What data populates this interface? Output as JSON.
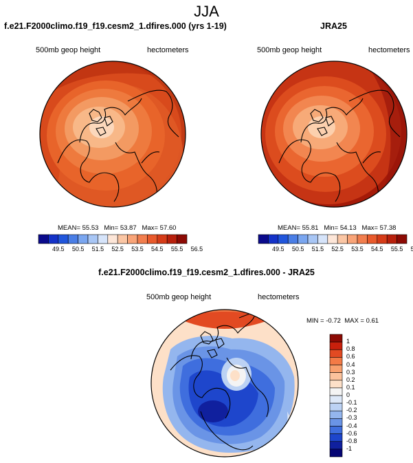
{
  "figure": {
    "season_title": "JJA",
    "left_panel": {
      "case_title": "f.e21.F2000climo.f19_f19.cesm2_1.dfires.000 (yrs 1-19)",
      "variable_label": "500mb geop height",
      "units_label": "hectometers",
      "stats": {
        "mean": "MEAN=  55.53",
        "min": "Min=  53.87",
        "max": "Max=  57.60"
      }
    },
    "right_panel": {
      "case_title": "JRA25",
      "variable_label": "500mb geop height",
      "units_label": "hectometers",
      "stats": {
        "mean": "MEAN=  55.81",
        "min": "Min=  54.13",
        "max": "Max=  57.38"
      }
    },
    "diff_panel": {
      "case_title": "f.e21.F2000climo.f19_f19.cesm2_1.dfires.000 - JRA25",
      "variable_label": "500mb geop height",
      "units_label": "hectometers",
      "stats": {
        "min": "MIN =  -0.72",
        "max": "MAX =   0.61"
      }
    },
    "abs_colorbar": {
      "colors": [
        "#0a0a8c",
        "#1432c8",
        "#2156dc",
        "#4a7ee6",
        "#7aa6f0",
        "#a8c6f5",
        "#d6e4fa",
        "#fde6d8",
        "#fbc6a4",
        "#f9a478",
        "#f27e4e",
        "#e95a2c",
        "#d63c18",
        "#b8200c",
        "#8c0a04"
      ],
      "tick_labels": [
        "49.5",
        "50.5",
        "51.5",
        "52.5",
        "53.5",
        "54.5",
        "55.5",
        "56.5"
      ]
    },
    "diff_colorbar": {
      "colors": [
        "#8c0a04",
        "#c8200c",
        "#e24a22",
        "#f37a46",
        "#f8a06e",
        "#fbc29c",
        "#fde0c8",
        "#f4f4f4",
        "#dde8f8",
        "#bcd2f4",
        "#94b6ee",
        "#6a94e6",
        "#3f6ede",
        "#1e46cc",
        "#10209e",
        "#050574"
      ],
      "tick_labels": [
        "1",
        "0.8",
        "0.6",
        "0.4",
        "0.3",
        "0.2",
        "0.1",
        "0",
        "-0.1",
        "-0.2",
        "-0.3",
        "-0.4",
        "-0.6",
        "-0.8",
        "-1"
      ]
    }
  }
}
